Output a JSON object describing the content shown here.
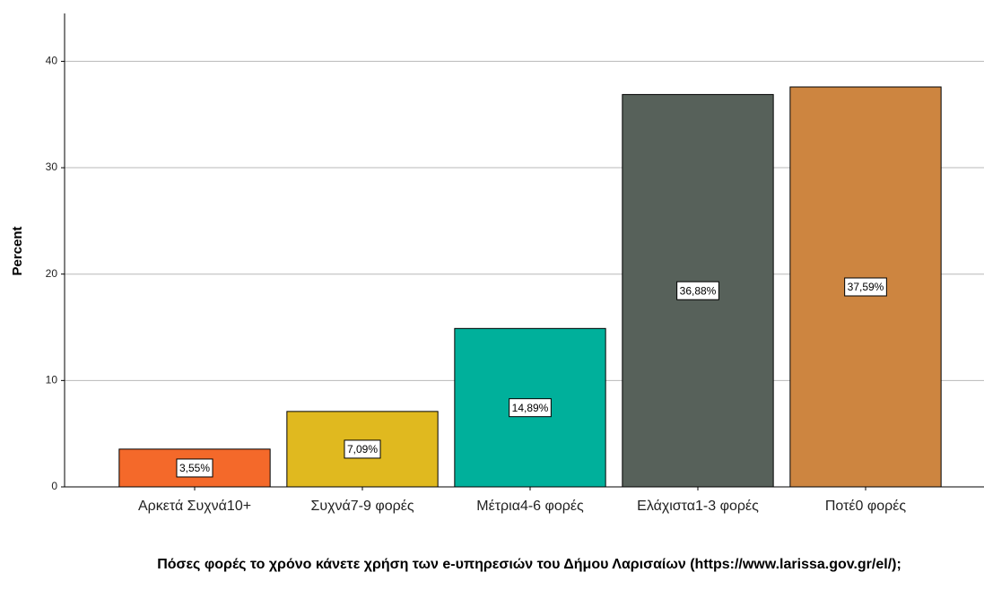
{
  "chart_data": {
    "type": "bar",
    "x_label": "Πόσες φορές το χρόνο κάνετε χρήση των e-υπηρεσιών του Δήμου Λαρισαίων (https://www.larissa.gov.gr/el/);",
    "y_label": "Percent",
    "categories": [
      "Αρκετά Συχνά10+",
      "Συχνά7-9 φορές",
      "Μέτρια4-6 φορές",
      "Ελάχιστα1-3 φορές",
      "Ποτέ0 φορές"
    ],
    "values": [
      3.55,
      7.09,
      14.89,
      36.88,
      37.59
    ],
    "value_labels": [
      "3,55%",
      "7,09%",
      "14,89%",
      "36,88%",
      "37,59%"
    ],
    "colors": [
      "#f4692a",
      "#e0b91f",
      "#00b09b",
      "#57615a",
      "#cd8540"
    ],
    "ylim": [
      0,
      44.5
    ],
    "yticks": [
      0,
      10,
      20,
      30,
      40
    ],
    "grid": true
  }
}
